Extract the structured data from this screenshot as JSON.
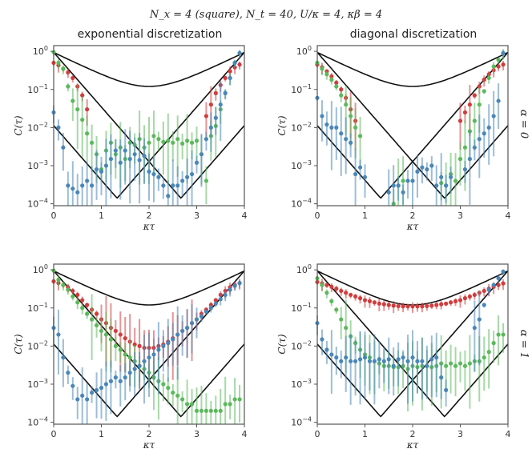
{
  "suptitle": "N_x = 4 (square),  N_t = 40,    U/κ = 4,  κβ = 4",
  "columns": [
    "exponential discretization",
    "diagonal discretization"
  ],
  "rows": [
    "α = 0",
    "α = 1"
  ],
  "colors": {
    "red": "#d13c3c",
    "green": "#5cb85c",
    "blue": "#4a86b8",
    "curve": "#111111",
    "frame": "#555555"
  },
  "chart_data": [
    {
      "type": "scatter",
      "panel": "exponential discretization, α = 0",
      "xlabel": "κτ",
      "ylabel": "C(τ)",
      "xlim": [
        0,
        4
      ],
      "ylim_log10": [
        -4.05,
        0.15
      ],
      "xticks": [
        "0",
        "1",
        "2",
        "3",
        "4"
      ],
      "yticks": [
        "10^0",
        "10^-1",
        "10^-2",
        "10^-3",
        "10^-4"
      ],
      "series": [
        {
          "name": "red",
          "x": [
            0.0,
            0.1,
            0.2,
            0.3,
            0.4,
            0.5,
            0.6,
            0.7,
            3.2,
            3.3,
            3.4,
            3.5,
            3.6,
            3.7,
            3.8,
            3.9
          ],
          "y": [
            0.5,
            0.43,
            0.35,
            0.28,
            0.2,
            0.12,
            0.07,
            0.03,
            0.02,
            0.04,
            0.08,
            0.13,
            0.2,
            0.3,
            0.38,
            0.45
          ]
        },
        {
          "name": "green",
          "x": [
            0.0,
            0.1,
            0.2,
            0.3,
            0.4,
            0.5,
            0.6,
            0.7,
            0.8,
            0.9,
            1.0,
            1.1,
            1.2,
            1.3,
            1.4,
            1.5,
            1.6,
            1.7,
            1.8,
            1.9,
            2.0,
            2.1,
            2.2,
            2.3,
            2.4,
            2.5,
            2.6,
            2.7,
            2.8,
            2.9,
            3.0,
            3.1,
            3.2,
            3.3,
            3.4,
            3.5,
            3.6,
            3.7,
            3.8,
            3.9
          ],
          "y": [
            0.95,
            0.5,
            0.35,
            0.12,
            0.05,
            0.03,
            0.016,
            0.007,
            0.004,
            0.002,
            0.0008,
            0.0025,
            0.004,
            0.002,
            0.003,
            0.0015,
            0.004,
            0.0035,
            0.005,
            0.003,
            0.004,
            0.006,
            0.005,
            0.0042,
            0.0045,
            0.004,
            0.005,
            0.0038,
            0.0045,
            0.004,
            0.0045,
            0.002,
            0.0004,
            0.006,
            0.011,
            0.03,
            0.08,
            0.2,
            0.5,
            0.9
          ]
        },
        {
          "name": "blue",
          "x": [
            0.0,
            0.1,
            0.2,
            0.3,
            0.4,
            0.5,
            0.6,
            0.7,
            0.8,
            0.9,
            1.0,
            1.1,
            1.2,
            1.3,
            1.4,
            1.5,
            1.6,
            1.7,
            1.8,
            1.9,
            2.0,
            2.1,
            2.2,
            2.3,
            2.4,
            2.5,
            2.6,
            2.7,
            2.8,
            2.9,
            3.0,
            3.1,
            3.2,
            3.3,
            3.4,
            3.5,
            3.6,
            3.7,
            3.8,
            3.9
          ],
          "y": [
            0.025,
            0.01,
            0.003,
            0.0003,
            0.00025,
            0.0002,
            0.0003,
            0.0004,
            0.0003,
            0.0008,
            0.0007,
            0.001,
            0.0015,
            0.0025,
            0.0012,
            0.0025,
            0.0015,
            0.002,
            0.0014,
            0.0018,
            0.0007,
            0.0006,
            0.0005,
            0.0003,
            0.00016,
            0.0003,
            0.0003,
            0.0004,
            0.0005,
            0.0006,
            0.0012,
            0.002,
            0.005,
            0.01,
            0.018,
            0.04,
            0.08,
            0.2,
            0.5,
            0.9
          ]
        }
      ]
    },
    {
      "type": "scatter",
      "panel": "diagonal discretization, α = 0",
      "xlabel": "κτ",
      "ylabel": "C(τ)",
      "xlim": [
        0,
        4
      ],
      "ylim_log10": [
        -4.05,
        0.15
      ],
      "xticks": [
        "0",
        "1",
        "2",
        "3",
        "4"
      ],
      "yticks": [
        "10^0",
        "10^-1",
        "10^-2",
        "10^-3",
        "10^-4"
      ],
      "series": [
        {
          "name": "red",
          "x": [
            0.0,
            0.1,
            0.2,
            0.3,
            0.4,
            0.5,
            0.6,
            0.7,
            0.8,
            3.0,
            3.1,
            3.2,
            3.3,
            3.4,
            3.5,
            3.6,
            3.7,
            3.8,
            3.9
          ],
          "y": [
            0.45,
            0.38,
            0.3,
            0.22,
            0.15,
            0.1,
            0.06,
            0.03,
            0.015,
            0.015,
            0.025,
            0.04,
            0.07,
            0.12,
            0.18,
            0.25,
            0.32,
            0.4,
            0.45
          ]
        },
        {
          "name": "green",
          "x": [
            0.0,
            0.1,
            0.2,
            0.3,
            0.4,
            0.5,
            0.6,
            0.7,
            0.8,
            0.9,
            1.6,
            1.7,
            1.8,
            2.6,
            2.7,
            2.8,
            2.9,
            3.0,
            3.1,
            3.2,
            3.3,
            3.4,
            3.5,
            3.6,
            3.7,
            3.8,
            3.9
          ],
          "y": [
            0.5,
            0.35,
            0.25,
            0.18,
            0.12,
            0.07,
            0.04,
            0.02,
            0.01,
            0.006,
            0.0001,
            0.0003,
            0.0004,
            0.00035,
            0.0003,
            0.0006,
            0.0004,
            0.0015,
            0.003,
            0.008,
            0.015,
            0.04,
            0.09,
            0.2,
            0.4,
            0.6,
            0.9
          ]
        },
        {
          "name": "blue",
          "x": [
            0.0,
            0.1,
            0.2,
            0.3,
            0.4,
            0.5,
            0.6,
            0.7,
            0.8,
            0.9,
            1.0,
            1.5,
            1.6,
            1.7,
            1.8,
            1.9,
            2.0,
            2.1,
            2.2,
            2.3,
            2.4,
            2.5,
            2.6,
            2.7,
            2.8,
            3.1,
            3.2,
            3.3,
            3.4,
            3.5,
            3.6,
            3.7,
            3.8,
            3.9
          ],
          "y": [
            0.06,
            0.02,
            0.012,
            0.01,
            0.01,
            0.007,
            0.005,
            0.004,
            0.0006,
            0.0009,
            0.0005,
            0.0002,
            0.0003,
            0.0003,
            0.0002,
            0.0004,
            0.0004,
            0.0007,
            0.0009,
            0.0008,
            0.001,
            0.0003,
            0.0005,
            0.0003,
            0.0005,
            0.0008,
            0.0015,
            0.003,
            0.005,
            0.007,
            0.01,
            0.02,
            0.05,
            0.9
          ]
        }
      ]
    },
    {
      "type": "scatter",
      "panel": "exponential discretization, α = 1",
      "xlabel": "κτ",
      "ylabel": "C(τ)",
      "xlim": [
        0,
        4
      ],
      "ylim_log10": [
        -4.05,
        0.15
      ],
      "xticks": [
        "0",
        "1",
        "2",
        "3",
        "4"
      ],
      "yticks": [
        "10^0",
        "10^-1",
        "10^-2",
        "10^-3",
        "10^-4"
      ],
      "series": [
        {
          "name": "red",
          "x": [
            0.0,
            0.1,
            0.2,
            0.3,
            0.4,
            0.5,
            0.6,
            0.7,
            0.8,
            0.9,
            1.0,
            1.1,
            1.2,
            1.3,
            1.4,
            1.5,
            1.6,
            1.7,
            1.8,
            1.9,
            2.0,
            2.1,
            2.2,
            2.3,
            2.4,
            2.5,
            2.6,
            2.7,
            2.8,
            2.9,
            3.0,
            3.1,
            3.2,
            3.3,
            3.4,
            3.5,
            3.6,
            3.7,
            3.8,
            3.9
          ],
          "y": [
            0.5,
            0.45,
            0.4,
            0.35,
            0.28,
            0.22,
            0.16,
            0.12,
            0.09,
            0.07,
            0.05,
            0.04,
            0.03,
            0.025,
            0.02,
            0.016,
            0.013,
            0.011,
            0.01,
            0.009,
            0.009,
            0.009,
            0.01,
            0.011,
            0.013,
            0.016,
            0.02,
            0.025,
            0.03,
            0.04,
            0.05,
            0.07,
            0.09,
            0.12,
            0.16,
            0.22,
            0.28,
            0.35,
            0.4,
            0.45
          ]
        },
        {
          "name": "green",
          "x": [
            0.0,
            0.1,
            0.2,
            0.3,
            0.4,
            0.5,
            0.6,
            0.7,
            0.8,
            0.9,
            1.0,
            1.1,
            1.2,
            1.3,
            1.4,
            1.5,
            1.6,
            1.7,
            1.8,
            1.9,
            2.0,
            2.1,
            2.2,
            2.3,
            2.4,
            2.5,
            2.6,
            2.7,
            2.8,
            2.9,
            3.0,
            3.1,
            3.2,
            3.3,
            3.4,
            3.5,
            3.6,
            3.7,
            3.8,
            3.9
          ],
          "y": [
            0.95,
            0.55,
            0.4,
            0.3,
            0.2,
            0.14,
            0.1,
            0.07,
            0.05,
            0.035,
            0.025,
            0.02,
            0.015,
            0.01,
            0.008,
            0.006,
            0.005,
            0.004,
            0.003,
            0.0025,
            0.002,
            0.0015,
            0.0012,
            0.001,
            0.0008,
            0.0006,
            0.0005,
            0.0004,
            0.0003,
            0.0003,
            0.0002,
            0.0002,
            0.0002,
            0.0002,
            0.0002,
            0.0002,
            0.0003,
            0.0003,
            0.0004,
            0.0004
          ]
        },
        {
          "name": "blue",
          "x": [
            0.0,
            0.1,
            0.2,
            0.3,
            0.4,
            0.5,
            0.6,
            0.7,
            0.8,
            0.9,
            1.0,
            1.1,
            1.2,
            1.3,
            1.4,
            1.5,
            1.6,
            1.7,
            1.8,
            1.9,
            2.0,
            2.1,
            2.2,
            2.3,
            2.4,
            2.5,
            2.6,
            2.7,
            2.8,
            2.9,
            3.0,
            3.1,
            3.2,
            3.3,
            3.4,
            3.5,
            3.6,
            3.7,
            3.8,
            3.9
          ],
          "y": [
            0.03,
            0.02,
            0.005,
            0.002,
            0.0009,
            0.0004,
            0.0005,
            0.0004,
            0.0006,
            0.0007,
            0.0008,
            0.001,
            0.0012,
            0.0015,
            0.0012,
            0.0015,
            0.002,
            0.0025,
            0.003,
            0.004,
            0.005,
            0.006,
            0.008,
            0.01,
            0.012,
            0.015,
            0.02,
            0.025,
            0.03,
            0.04,
            0.05,
            0.06,
            0.08,
            0.1,
            0.13,
            0.17,
            0.22,
            0.3,
            0.38,
            0.45
          ]
        }
      ]
    },
    {
      "type": "scatter",
      "panel": "diagonal discretization, α = 1",
      "xlabel": "κτ",
      "ylabel": "C(τ)",
      "xlim": [
        0,
        4
      ],
      "ylim_log10": [
        -4.05,
        0.15
      ],
      "xticks": [
        "0",
        "1",
        "2",
        "3",
        "4"
      ],
      "yticks": [
        "10^0",
        "10^-1",
        "10^-2",
        "10^-3",
        "10^-4"
      ],
      "series": [
        {
          "name": "red",
          "x": [
            0.0,
            0.1,
            0.2,
            0.3,
            0.4,
            0.5,
            0.6,
            0.7,
            0.8,
            0.9,
            1.0,
            1.1,
            1.2,
            1.3,
            1.4,
            1.5,
            1.6,
            1.7,
            1.8,
            1.9,
            2.0,
            2.1,
            2.2,
            2.3,
            2.4,
            2.5,
            2.6,
            2.7,
            2.8,
            2.9,
            3.0,
            3.1,
            3.2,
            3.3,
            3.4,
            3.5,
            3.6,
            3.7,
            3.8,
            3.9
          ],
          "y": [
            0.48,
            0.44,
            0.4,
            0.36,
            0.32,
            0.28,
            0.25,
            0.22,
            0.2,
            0.18,
            0.16,
            0.15,
            0.14,
            0.13,
            0.125,
            0.12,
            0.115,
            0.112,
            0.11,
            0.11,
            0.11,
            0.11,
            0.11,
            0.112,
            0.115,
            0.12,
            0.125,
            0.13,
            0.14,
            0.15,
            0.16,
            0.18,
            0.2,
            0.22,
            0.25,
            0.28,
            0.32,
            0.36,
            0.4,
            0.44
          ]
        },
        {
          "name": "green",
          "x": [
            0.0,
            0.1,
            0.2,
            0.3,
            0.4,
            0.5,
            0.6,
            0.7,
            0.8,
            0.9,
            1.0,
            1.1,
            1.2,
            1.3,
            1.4,
            1.5,
            1.6,
            1.7,
            1.8,
            1.9,
            2.0,
            2.1,
            2.2,
            2.3,
            2.4,
            2.5,
            2.6,
            2.7,
            2.8,
            2.9,
            3.0,
            3.1,
            3.2,
            3.3,
            3.4,
            3.5,
            3.6,
            3.7,
            3.8,
            3.9
          ],
          "y": [
            0.6,
            0.4,
            0.25,
            0.15,
            0.09,
            0.05,
            0.03,
            0.018,
            0.012,
            0.008,
            0.006,
            0.005,
            0.004,
            0.0035,
            0.003,
            0.003,
            0.0028,
            0.0028,
            0.003,
            0.0025,
            0.003,
            0.0028,
            0.003,
            0.003,
            0.0028,
            0.003,
            0.0035,
            0.003,
            0.0035,
            0.003,
            0.0035,
            0.003,
            0.0035,
            0.004,
            0.004,
            0.005,
            0.007,
            0.012,
            0.02,
            0.02
          ]
        },
        {
          "name": "blue",
          "x": [
            0.0,
            0.1,
            0.2,
            0.3,
            0.4,
            0.5,
            0.6,
            0.7,
            0.8,
            0.9,
            1.0,
            1.1,
            1.2,
            1.3,
            1.4,
            1.5,
            1.6,
            1.7,
            1.8,
            1.9,
            2.0,
            2.1,
            2.2,
            2.3,
            2.4,
            2.5,
            2.6,
            2.7,
            3.3,
            3.4,
            3.5,
            3.6,
            3.7,
            3.8,
            3.9
          ],
          "y": [
            0.04,
            0.015,
            0.008,
            0.006,
            0.005,
            0.004,
            0.005,
            0.004,
            0.004,
            0.0045,
            0.005,
            0.004,
            0.004,
            0.0045,
            0.004,
            0.0045,
            0.003,
            0.0045,
            0.005,
            0.004,
            0.005,
            0.004,
            0.004,
            0.003,
            0.0045,
            0.005,
            0.0015,
            0.0007,
            0.03,
            0.05,
            0.12,
            0.3,
            0.4,
            0.6,
            0.9
          ]
        }
      ]
    }
  ]
}
